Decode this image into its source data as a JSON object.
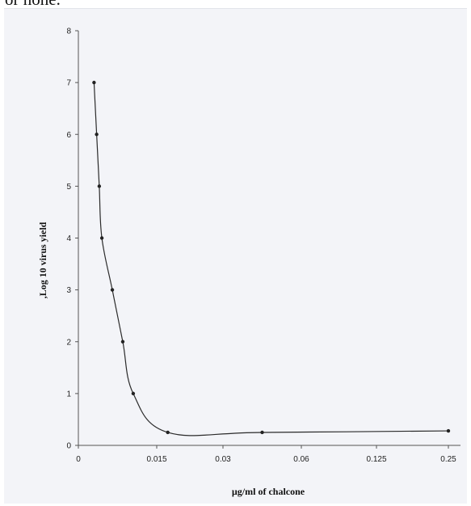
{
  "page": {
    "top_text": "or none."
  },
  "chart_data": {
    "type": "line",
    "title": "",
    "xlabel": "µg/ml  of chalcone",
    "ylabel": ",Log 10 virus yield",
    "x_tick_labels": [
      "0",
      "0.015",
      "0.03",
      "0.06",
      "0.125",
      "0.25"
    ],
    "y_ticks": [
      0,
      1,
      2,
      3,
      4,
      5,
      6,
      7,
      8
    ],
    "ylim": [
      0,
      8
    ],
    "grid": false,
    "legend": "none",
    "line_color": "#2a2a2a",
    "series": [
      {
        "points": [
          {
            "x": 0.003,
            "y": 7.0
          },
          {
            "x": 0.0035,
            "y": 6.0
          },
          {
            "x": 0.004,
            "y": 5.0
          },
          {
            "x": 0.0045,
            "y": 4.0
          },
          {
            "x": 0.0065,
            "y": 3.0
          },
          {
            "x": 0.0085,
            "y": 2.0
          },
          {
            "x": 0.0105,
            "y": 1.0
          },
          {
            "x": 0.0175,
            "y": 0.25
          },
          {
            "x": 0.045,
            "y": 0.25
          },
          {
            "x": 0.25,
            "y": 0.28
          }
        ]
      }
    ]
  }
}
